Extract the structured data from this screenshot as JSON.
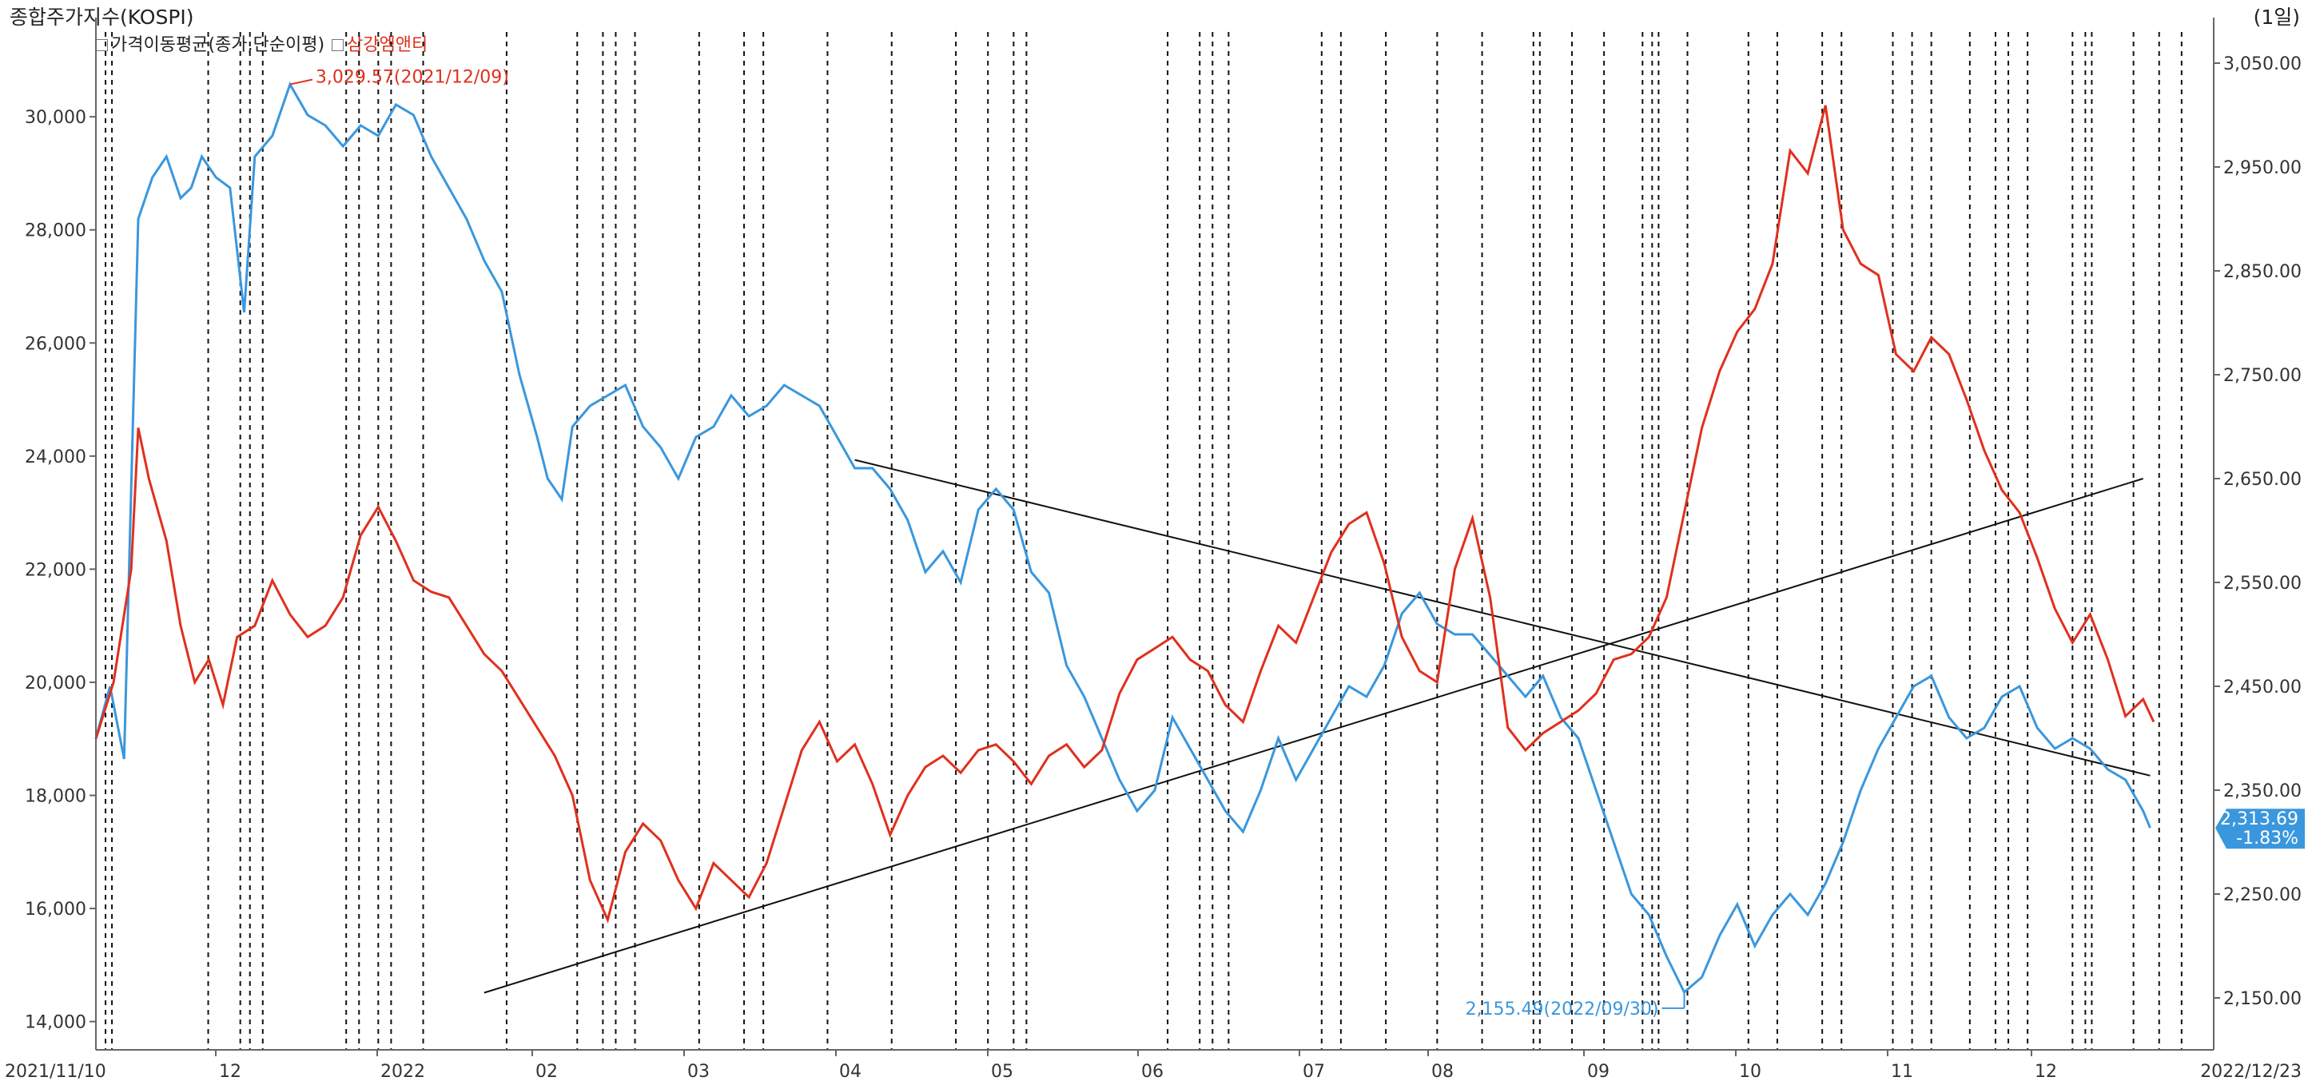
{
  "header": {
    "title": "종합주가지수(KOSPI)",
    "period": "(1일)"
  },
  "legend": {
    "item1": "가격이동평균(종가,단순이평)",
    "item2": "삼강엠앤티"
  },
  "annotations": {
    "high_label": "3,029.57(2021/12/09)",
    "low_label": "2,155.49(2022/09/30)",
    "last_value": "2,313.69",
    "last_change": "-1.83%"
  },
  "colors": {
    "kospi": "#3a97dd",
    "stock": "#e0301e",
    "trend": "#111111",
    "axis": "#666666"
  },
  "chart_data": {
    "type": "line",
    "x_start": "2021/11/10",
    "x_end": "2022/12/23",
    "x_ticks": [
      "12",
      "2022",
      "02",
      "03",
      "04",
      "05",
      "06",
      "07",
      "08",
      "09",
      "10",
      "11",
      "12"
    ],
    "left_axis": {
      "ticks": [
        "30,000",
        "28,000",
        "26,000",
        "24,000",
        "22,000",
        "20,000",
        "18,000",
        "16,000",
        "14,000"
      ],
      "range": [
        13500,
        31500
      ]
    },
    "right_axis": {
      "ticks": [
        "3,050.00",
        "2,950.00",
        "2,850.00",
        "2,750.00",
        "2,650.00",
        "2,550.00",
        "2,450.00",
        "2,350.00",
        "2,250.00",
        "2,150.00"
      ],
      "range": [
        2100,
        3080
      ]
    },
    "series": [
      {
        "name": "종합주가지수(KOSPI)",
        "axis": "right",
        "points": [
          [
            0,
            2400
          ],
          [
            4,
            2450
          ],
          [
            8,
            2380
          ],
          [
            12,
            2900
          ],
          [
            16,
            2940
          ],
          [
            20,
            2960
          ],
          [
            24,
            2920
          ],
          [
            27,
            2930
          ],
          [
            30,
            2960
          ],
          [
            34,
            2940
          ],
          [
            38,
            2930
          ],
          [
            42,
            2810
          ],
          [
            45,
            2960
          ],
          [
            50,
            2980
          ],
          [
            55,
            3029.57
          ],
          [
            60,
            3000
          ],
          [
            65,
            2990
          ],
          [
            70,
            2970
          ],
          [
            75,
            2990
          ],
          [
            80,
            2980
          ],
          [
            85,
            3010
          ],
          [
            90,
            3000
          ],
          [
            95,
            2960
          ],
          [
            100,
            2930
          ],
          [
            105,
            2900
          ],
          [
            110,
            2860
          ],
          [
            115,
            2830
          ],
          [
            120,
            2750
          ],
          [
            125,
            2690
          ],
          [
            128,
            2650
          ],
          [
            132,
            2630
          ],
          [
            135,
            2700
          ],
          [
            140,
            2720
          ],
          [
            145,
            2730
          ],
          [
            150,
            2740
          ],
          [
            155,
            2700
          ],
          [
            160,
            2680
          ],
          [
            165,
            2650
          ],
          [
            170,
            2690
          ],
          [
            175,
            2700
          ],
          [
            180,
            2730
          ],
          [
            185,
            2710
          ],
          [
            190,
            2720
          ],
          [
            195,
            2740
          ],
          [
            200,
            2730
          ],
          [
            205,
            2720
          ],
          [
            210,
            2690
          ],
          [
            215,
            2660
          ],
          [
            220,
            2660
          ],
          [
            225,
            2640
          ],
          [
            230,
            2610
          ],
          [
            235,
            2560
          ],
          [
            240,
            2580
          ],
          [
            245,
            2550
          ],
          [
            250,
            2620
          ],
          [
            255,
            2640
          ],
          [
            260,
            2620
          ],
          [
            265,
            2560
          ],
          [
            270,
            2540
          ],
          [
            275,
            2470
          ],
          [
            280,
            2440
          ],
          [
            285,
            2400
          ],
          [
            290,
            2360
          ],
          [
            295,
            2330
          ],
          [
            300,
            2350
          ],
          [
            305,
            2420
          ],
          [
            310,
            2390
          ],
          [
            315,
            2360
          ],
          [
            320,
            2330
          ],
          [
            325,
            2310
          ],
          [
            330,
            2350
          ],
          [
            335,
            2400
          ],
          [
            340,
            2360
          ],
          [
            345,
            2390
          ],
          [
            350,
            2420
          ],
          [
            355,
            2450
          ],
          [
            360,
            2440
          ],
          [
            365,
            2470
          ],
          [
            370,
            2520
          ],
          [
            375,
            2540
          ],
          [
            380,
            2510
          ],
          [
            385,
            2500
          ],
          [
            390,
            2500
          ],
          [
            395,
            2480
          ],
          [
            400,
            2460
          ],
          [
            405,
            2440
          ],
          [
            410,
            2460
          ],
          [
            415,
            2420
          ],
          [
            420,
            2400
          ],
          [
            425,
            2350
          ],
          [
            430,
            2300
          ],
          [
            435,
            2250
          ],
          [
            440,
            2230
          ],
          [
            445,
            2190
          ],
          [
            450,
            2155.49
          ],
          [
            455,
            2170
          ],
          [
            460,
            2210
          ],
          [
            465,
            2240
          ],
          [
            470,
            2200
          ],
          [
            475,
            2230
          ],
          [
            480,
            2250
          ],
          [
            485,
            2230
          ],
          [
            490,
            2260
          ],
          [
            495,
            2300
          ],
          [
            500,
            2350
          ],
          [
            505,
            2390
          ],
          [
            510,
            2420
          ],
          [
            515,
            2450
          ],
          [
            520,
            2460
          ],
          [
            525,
            2420
          ],
          [
            530,
            2400
          ],
          [
            535,
            2410
          ],
          [
            540,
            2440
          ],
          [
            545,
            2450
          ],
          [
            550,
            2410
          ],
          [
            555,
            2390
          ],
          [
            560,
            2400
          ],
          [
            565,
            2390
          ],
          [
            570,
            2370
          ],
          [
            575,
            2360
          ],
          [
            580,
            2330
          ],
          [
            582,
            2313.69
          ]
        ]
      },
      {
        "name": "삼강엠앤티",
        "axis": "left",
        "points": [
          [
            0,
            19000
          ],
          [
            5,
            20000
          ],
          [
            10,
            22000
          ],
          [
            12,
            24500
          ],
          [
            15,
            23600
          ],
          [
            20,
            22500
          ],
          [
            24,
            21000
          ],
          [
            28,
            20000
          ],
          [
            32,
            20400
          ],
          [
            36,
            19600
          ],
          [
            40,
            20800
          ],
          [
            45,
            21000
          ],
          [
            50,
            21800
          ],
          [
            55,
            21200
          ],
          [
            60,
            20800
          ],
          [
            65,
            21000
          ],
          [
            70,
            21500
          ],
          [
            75,
            22600
          ],
          [
            80,
            23100
          ],
          [
            85,
            22500
          ],
          [
            90,
            21800
          ],
          [
            95,
            21600
          ],
          [
            100,
            21500
          ],
          [
            105,
            21000
          ],
          [
            110,
            20500
          ],
          [
            115,
            20200
          ],
          [
            120,
            19700
          ],
          [
            125,
            19200
          ],
          [
            130,
            18700
          ],
          [
            135,
            18000
          ],
          [
            140,
            16500
          ],
          [
            145,
            15800
          ],
          [
            150,
            17000
          ],
          [
            155,
            17500
          ],
          [
            160,
            17200
          ],
          [
            165,
            16500
          ],
          [
            170,
            16000
          ],
          [
            175,
            16800
          ],
          [
            180,
            16500
          ],
          [
            185,
            16200
          ],
          [
            190,
            16800
          ],
          [
            195,
            17800
          ],
          [
            200,
            18800
          ],
          [
            205,
            19300
          ],
          [
            210,
            18600
          ],
          [
            215,
            18900
          ],
          [
            220,
            18200
          ],
          [
            225,
            17300
          ],
          [
            230,
            18000
          ],
          [
            235,
            18500
          ],
          [
            240,
            18700
          ],
          [
            245,
            18400
          ],
          [
            250,
            18800
          ],
          [
            255,
            18900
          ],
          [
            260,
            18600
          ],
          [
            265,
            18200
          ],
          [
            270,
            18700
          ],
          [
            275,
            18900
          ],
          [
            280,
            18500
          ],
          [
            285,
            18800
          ],
          [
            290,
            19800
          ],
          [
            295,
            20400
          ],
          [
            300,
            20600
          ],
          [
            305,
            20800
          ],
          [
            310,
            20400
          ],
          [
            315,
            20200
          ],
          [
            320,
            19600
          ],
          [
            325,
            19300
          ],
          [
            330,
            20200
          ],
          [
            335,
            21000
          ],
          [
            340,
            20700
          ],
          [
            345,
            21500
          ],
          [
            350,
            22300
          ],
          [
            355,
            22800
          ],
          [
            360,
            23000
          ],
          [
            365,
            22100
          ],
          [
            370,
            20800
          ],
          [
            375,
            20200
          ],
          [
            380,
            20000
          ],
          [
            385,
            22000
          ],
          [
            390,
            22900
          ],
          [
            395,
            21500
          ],
          [
            400,
            19200
          ],
          [
            405,
            18800
          ],
          [
            410,
            19100
          ],
          [
            415,
            19300
          ],
          [
            420,
            19500
          ],
          [
            425,
            19800
          ],
          [
            430,
            20400
          ],
          [
            435,
            20500
          ],
          [
            440,
            20800
          ],
          [
            445,
            21500
          ],
          [
            450,
            23000
          ],
          [
            455,
            24500
          ],
          [
            460,
            25500
          ],
          [
            465,
            26200
          ],
          [
            470,
            26600
          ],
          [
            475,
            27400
          ],
          [
            480,
            29400
          ],
          [
            485,
            29000
          ],
          [
            490,
            30200
          ],
          [
            495,
            28000
          ],
          [
            500,
            27400
          ],
          [
            505,
            27200
          ],
          [
            510,
            25800
          ],
          [
            515,
            25500
          ],
          [
            520,
            26100
          ],
          [
            525,
            25800
          ],
          [
            530,
            25000
          ],
          [
            535,
            24100
          ],
          [
            540,
            23400
          ],
          [
            545,
            23000
          ],
          [
            550,
            22200
          ],
          [
            555,
            21300
          ],
          [
            560,
            20700
          ],
          [
            565,
            21200
          ],
          [
            570,
            20400
          ],
          [
            575,
            19400
          ],
          [
            580,
            19700
          ],
          [
            583,
            19300
          ]
        ]
      }
    ],
    "trendlines": [
      {
        "axis": "right",
        "from": [
          110,
          2155
        ],
        "to": [
          580,
          2650
        ]
      },
      {
        "axis": "right",
        "from": [
          215,
          2668
        ],
        "to": [
          582,
          2364
        ]
      }
    ]
  }
}
